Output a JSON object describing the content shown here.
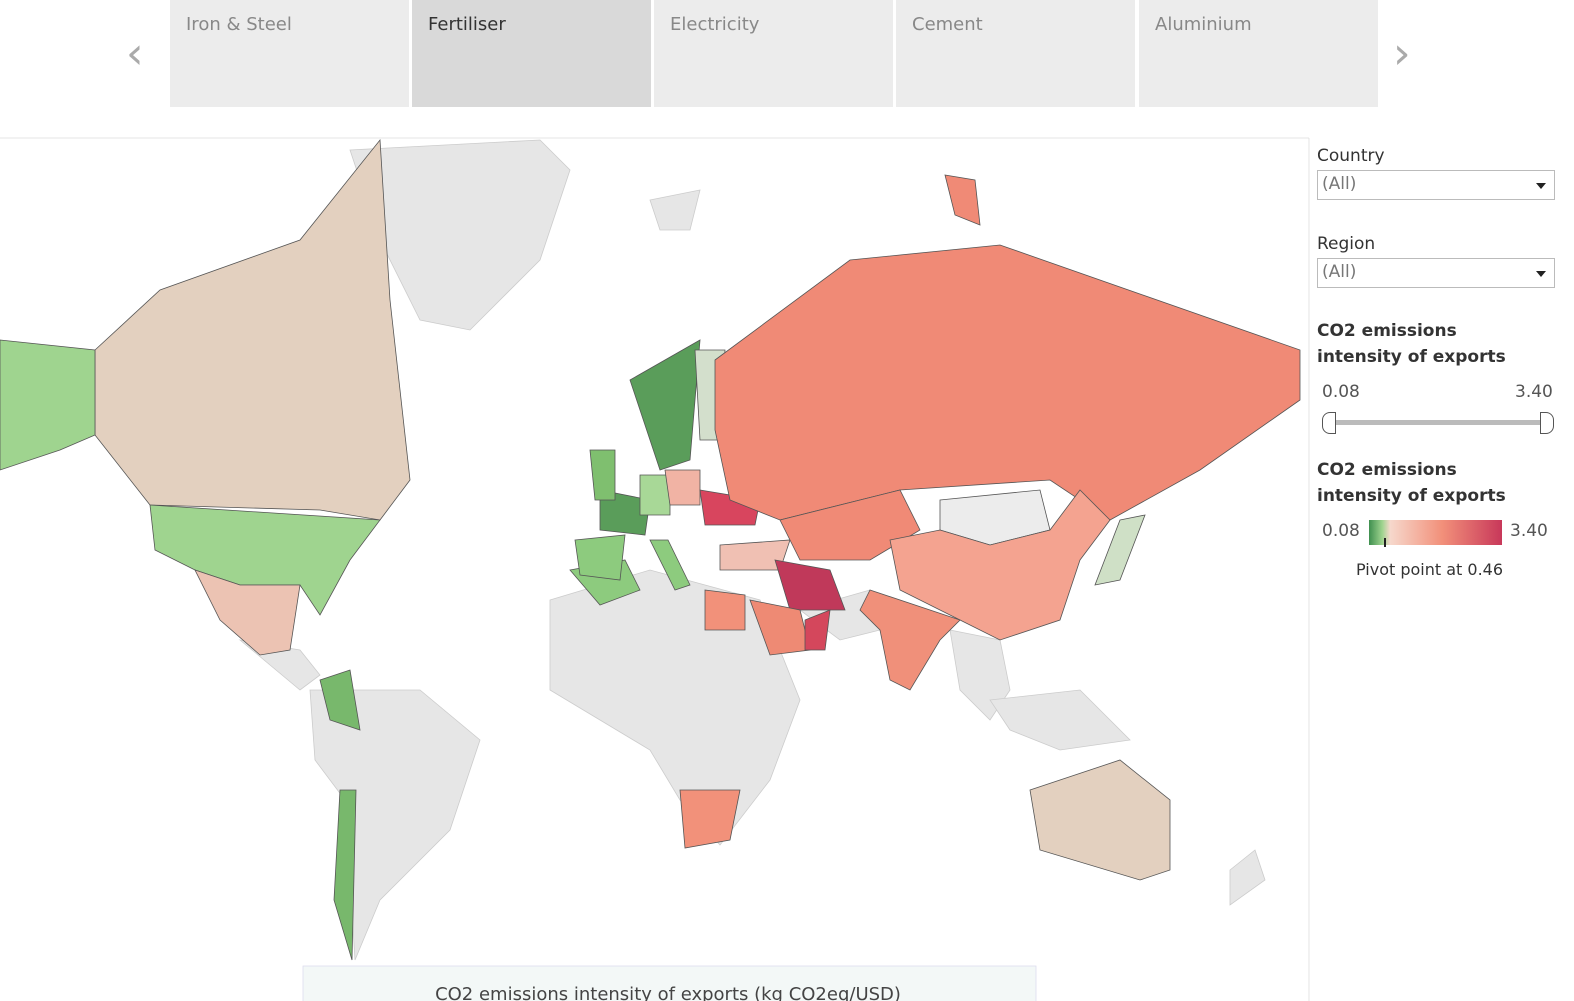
{
  "tabs": [
    "Iron & Steel",
    "Fertiliser",
    "Electricity",
    "Cement",
    "Aluminium"
  ],
  "filters": [
    {
      "label": "Country",
      "value": "(All)"
    },
    {
      "label": "Region",
      "value": "(All)"
    }
  ],
  "slider": {
    "title": "CO2 emissions intensity of exports",
    "min": "0.08",
    "max": "3.40"
  },
  "legend": {
    "title": "CO2 emissions intensity of exports",
    "min": "0.08",
    "max": "3.40",
    "note": "Pivot point at 0.46"
  },
  "map": {
    "caption": "CO2 emissions intensity of exports (kg CO2eq/USD)"
  }
}
